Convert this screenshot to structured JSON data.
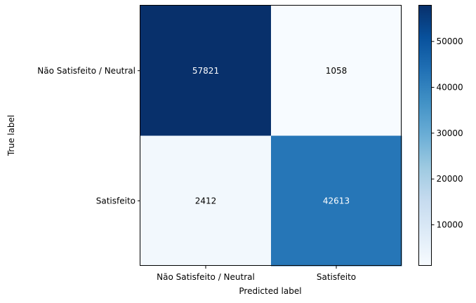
{
  "chart_data": {
    "type": "heatmap",
    "title": "",
    "xlabel": "Predicted label",
    "ylabel": "True label",
    "x_categories": [
      "Não Satisfeito / Neutral",
      "Satisfeito"
    ],
    "y_categories": [
      "Não Satisfeito / Neutral",
      "Satisfeito"
    ],
    "values": [
      [
        57821,
        1058
      ],
      [
        2412,
        42613
      ]
    ],
    "colormap": "Blues",
    "colormap_low": "#f7fbff",
    "colormap_high": "#08306b",
    "text_color_dark": "#000000",
    "text_color_light": "#ffffff",
    "colorbar": {
      "range": [
        1058,
        57821
      ],
      "ticks": [
        10000,
        20000,
        30000,
        40000,
        50000
      ]
    },
    "grid": false
  }
}
